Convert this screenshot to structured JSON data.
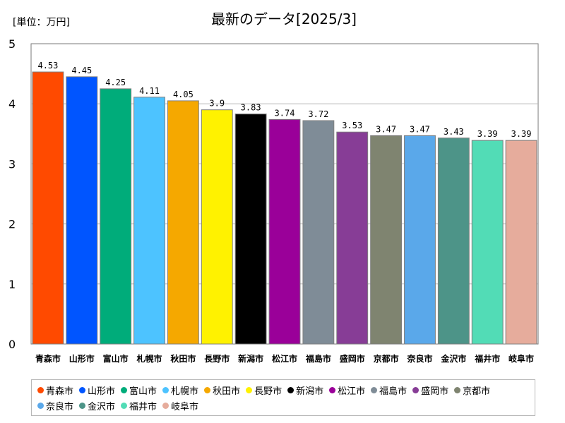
{
  "chart_data": {
    "type": "bar",
    "title": "最新のデータ[2025/3]",
    "unit_label": "[単位：万円]",
    "categories": [
      "青森市",
      "山形市",
      "富山市",
      "札幌市",
      "秋田市",
      "長野市",
      "新潟市",
      "松江市",
      "福島市",
      "盛岡市",
      "京都市",
      "奈良市",
      "金沢市",
      "福井市",
      "岐阜市"
    ],
    "values": [
      4.53,
      4.45,
      4.25,
      4.11,
      4.05,
      3.9,
      3.83,
      3.74,
      3.72,
      3.53,
      3.47,
      3.47,
      3.43,
      3.39,
      3.39
    ],
    "value_labels": [
      "4.53",
      "4.45",
      "4.25",
      "4.11",
      "4.05",
      "3.9",
      "3.83",
      "3.74",
      "3.72",
      "3.53",
      "3.47",
      "3.47",
      "3.43",
      "3.39",
      "3.39"
    ],
    "colors": [
      "#ff4a00",
      "#0055ff",
      "#00ac7a",
      "#4dc3ff",
      "#f5a800",
      "#fff200",
      "#000000",
      "#9a0099",
      "#7f8c97",
      "#873d96",
      "#7f8470",
      "#5aa8ea",
      "#4d9488",
      "#52dcb6",
      "#e6ac9c"
    ],
    "ylim": [
      0,
      5
    ],
    "yticks": [
      "0",
      "1",
      "2",
      "3",
      "4",
      "5"
    ],
    "grid": true,
    "legend_position": "bottom"
  }
}
